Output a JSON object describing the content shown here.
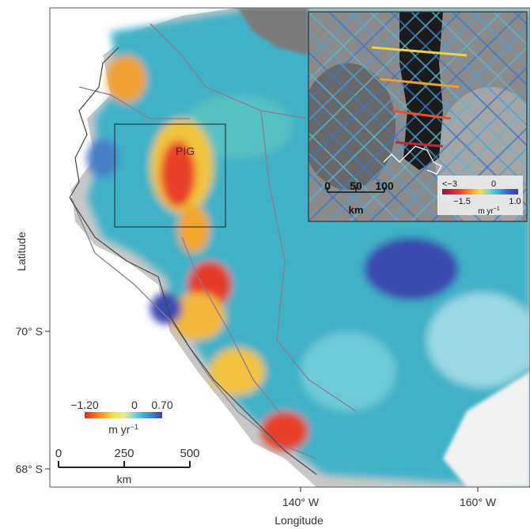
{
  "axes": {
    "xlabel": "Longitude",
    "ylabel": "Latitude",
    "x_ticks": [
      "140° W",
      "160° W"
    ],
    "y_ticks": [
      "70° S",
      "68° S"
    ]
  },
  "map_label": "PIG",
  "main_colorbar": {
    "min_label": "−1.20",
    "mid_label": "0",
    "max_label": "0.70",
    "unit_base": "m yr",
    "unit_exp": "−1",
    "colors": [
      "#e0282a",
      "#f06a1f",
      "#f7a824",
      "#f7e04a",
      "#e8ee8a",
      "#8ed6d0",
      "#3fb4d8",
      "#3c7ecb",
      "#3b42a8"
    ]
  },
  "main_scalebar": {
    "ticks": [
      "0",
      "250",
      "500"
    ],
    "unit": "km"
  },
  "inset": {
    "colorbar": {
      "top_left_label": "<−3",
      "top_mid_label": "0",
      "bottom_left_label": "−1.5",
      "bottom_right_label": "1.0",
      "unit_base": "m yr",
      "unit_exp": "−1",
      "colors": [
        "#8a1c3c",
        "#c02a3a",
        "#e84a2a",
        "#f49a2a",
        "#f7e04a",
        "#7ed0c8",
        "#3aa8d8",
        "#3b62c0",
        "#3a3aa0"
      ]
    },
    "scalebar": {
      "ticks": [
        "0",
        "50",
        "100"
      ],
      "unit": "km"
    }
  }
}
